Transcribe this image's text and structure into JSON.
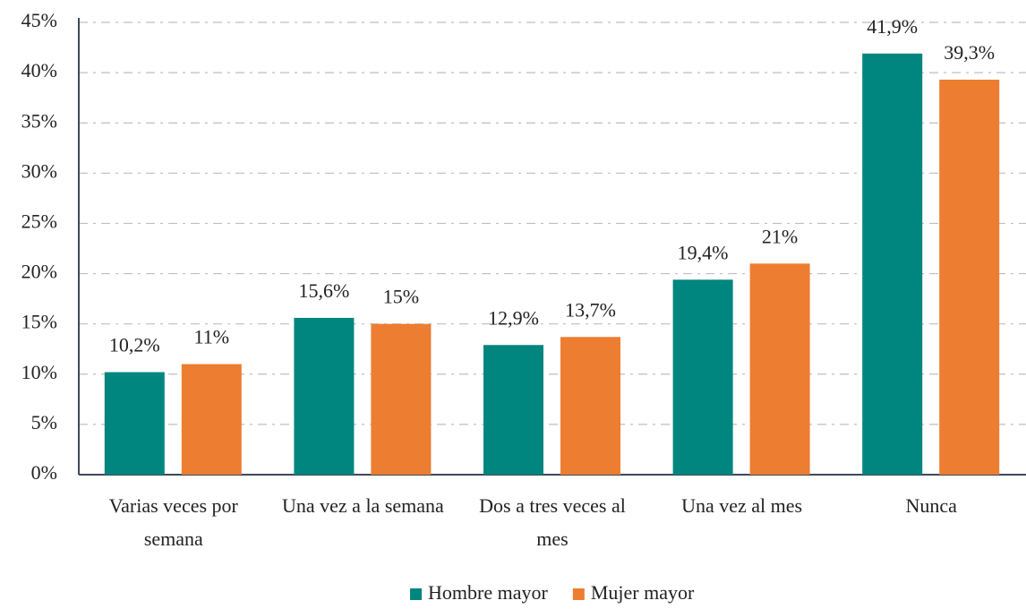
{
  "chart_data": {
    "type": "bar",
    "categories": [
      "Varias veces por semana",
      "Una vez a la semana",
      "Dos a tres veces al mes",
      "Una vez al mes",
      "Nunca"
    ],
    "series": [
      {
        "name": "Hombre mayor",
        "color": "#00857f",
        "values": [
          10.2,
          15.6,
          12.9,
          19.4,
          41.9
        ],
        "value_labels": [
          "10,2%",
          "15,6%",
          "12,9%",
          "19,4%",
          "41,9%"
        ]
      },
      {
        "name": "Mujer mayor",
        "color": "#ed7d31",
        "values": [
          11,
          15,
          13.7,
          21,
          39.3
        ],
        "value_labels": [
          "11%",
          "15%",
          "13,7%",
          "21%",
          "39,3%"
        ]
      }
    ],
    "ylim": [
      0,
      45
    ],
    "yticks": [
      {
        "value": 0,
        "label": "0%"
      },
      {
        "value": 5,
        "label": "5%"
      },
      {
        "value": 10,
        "label": "10%"
      },
      {
        "value": 15,
        "label": "15%"
      },
      {
        "value": 20,
        "label": "20%"
      },
      {
        "value": 25,
        "label": "25%"
      },
      {
        "value": 30,
        "label": "30%"
      },
      {
        "value": 35,
        "label": "35%"
      },
      {
        "value": 40,
        "label": "40%"
      },
      {
        "value": 45,
        "label": "45%"
      }
    ],
    "grid": true,
    "legend": "bottom"
  }
}
